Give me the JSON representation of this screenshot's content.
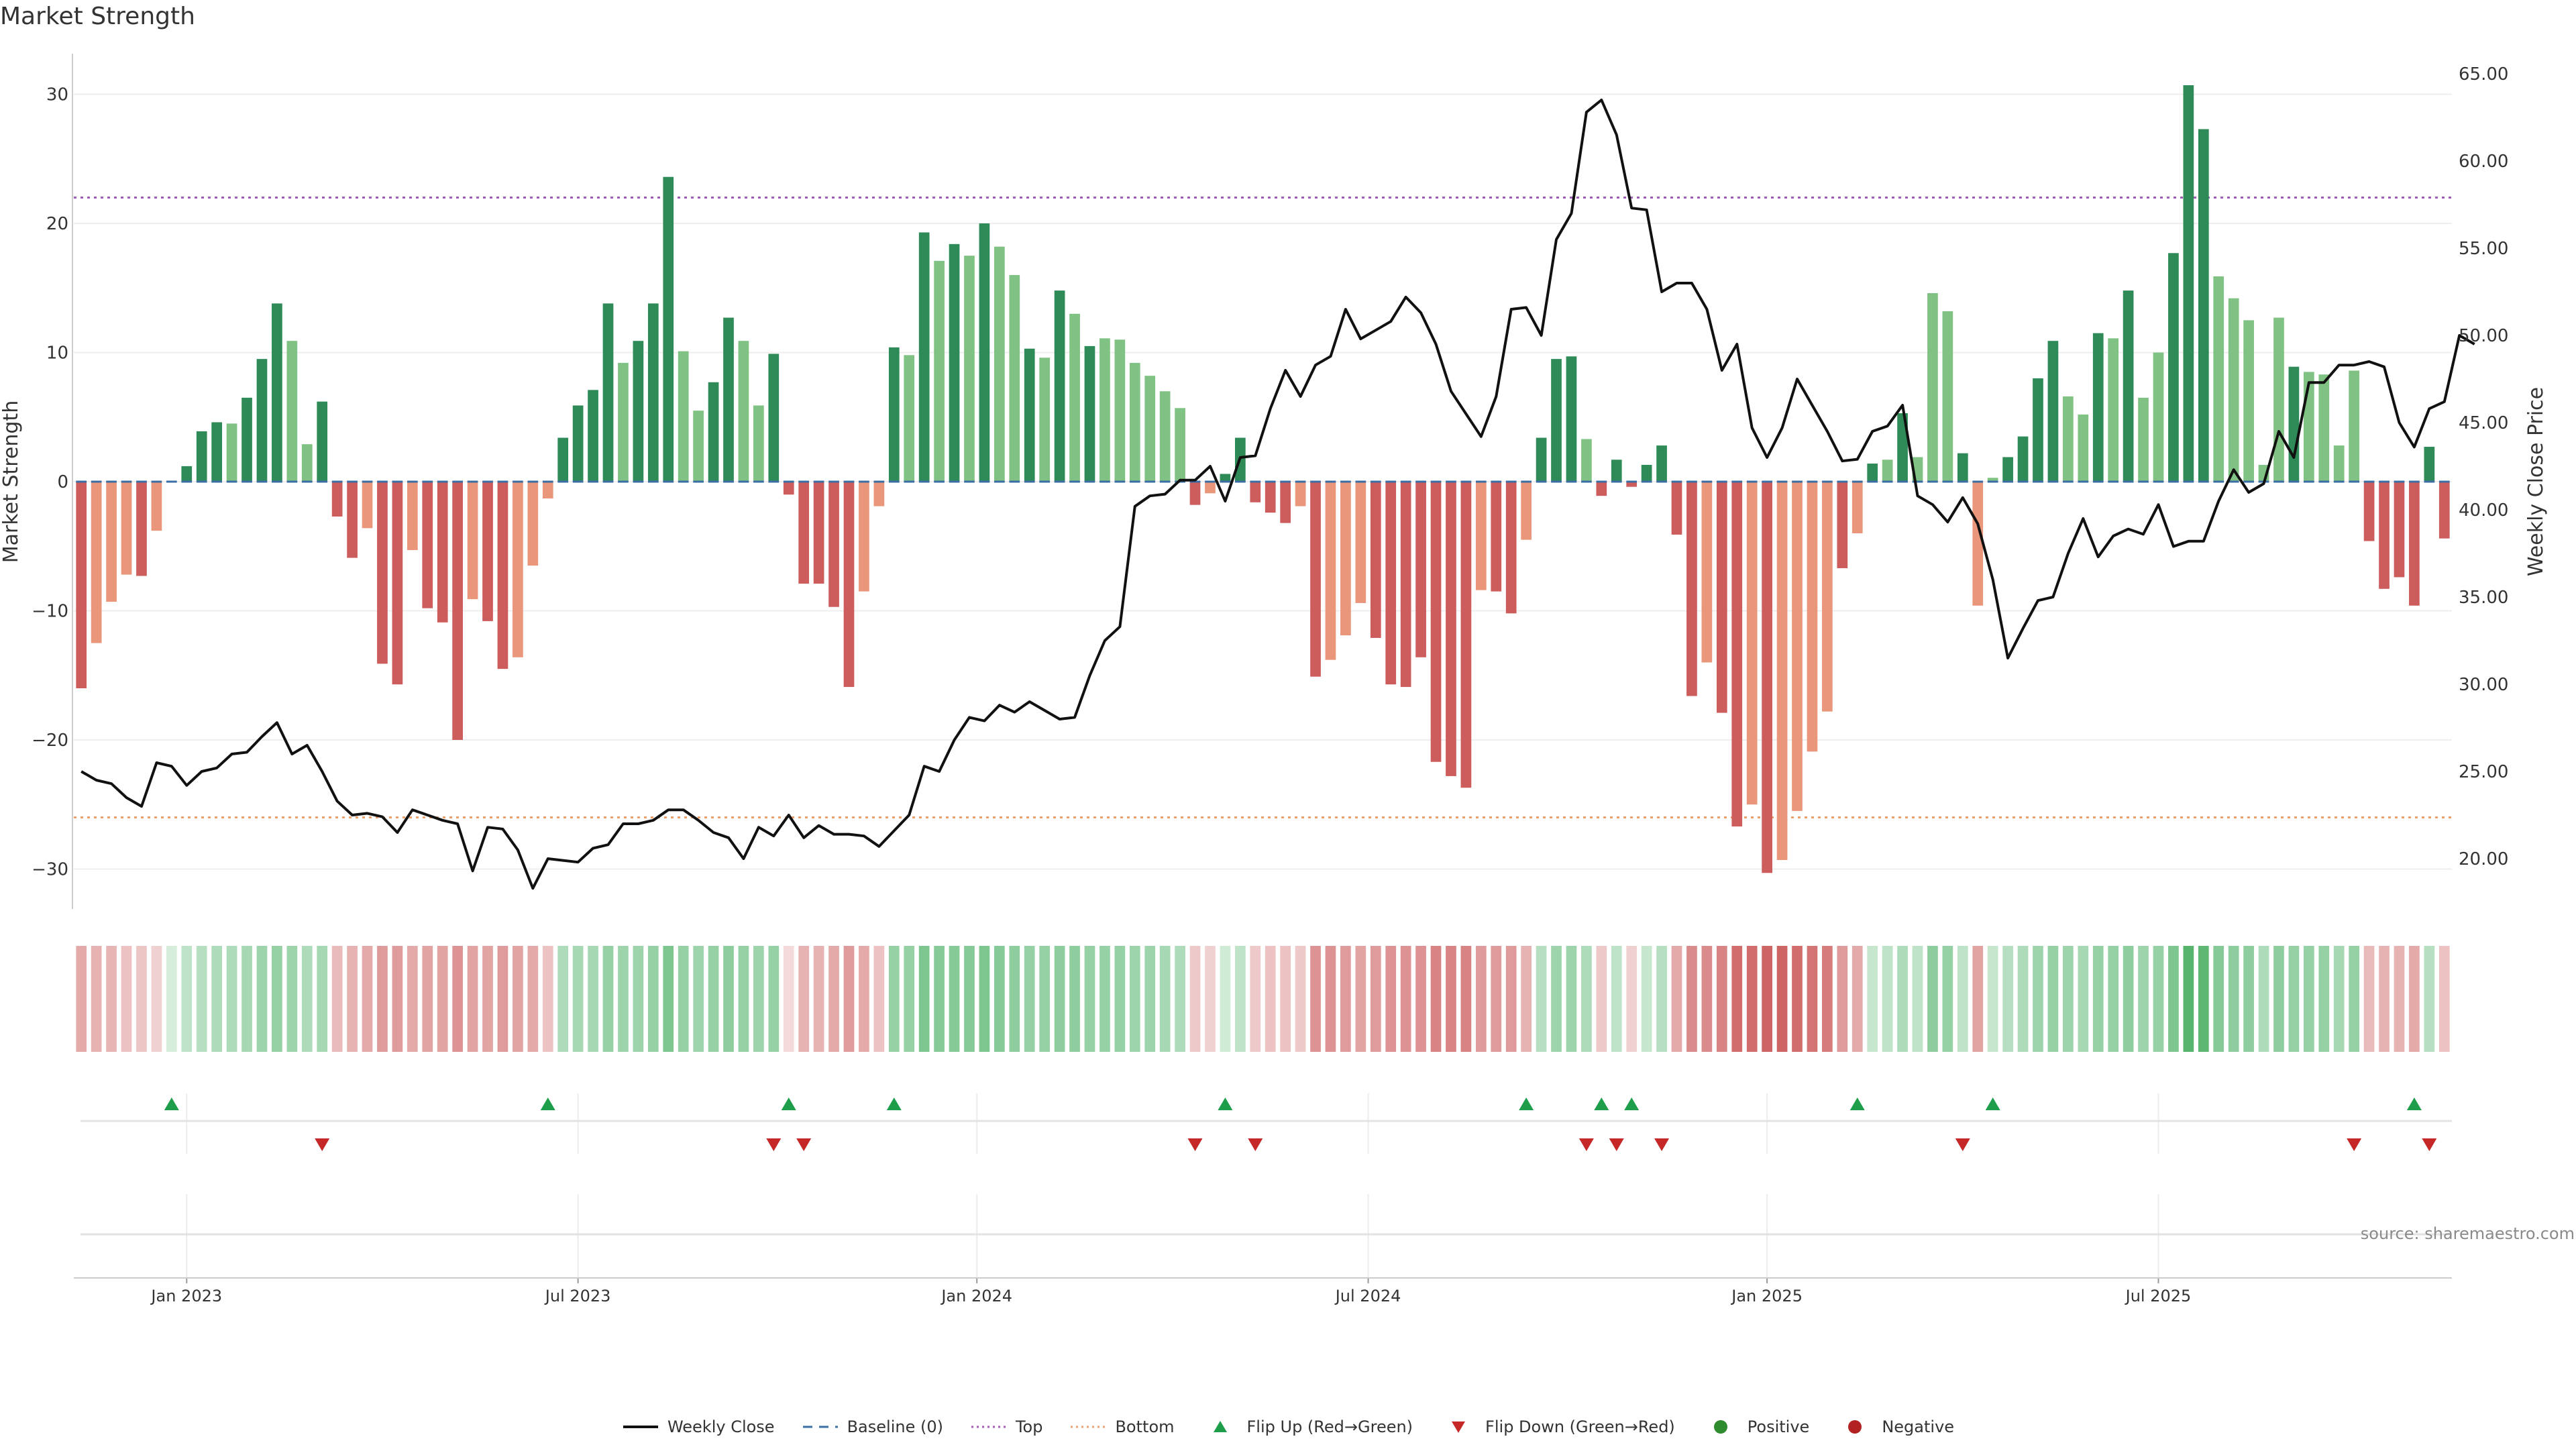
{
  "title": "Market Strength",
  "source": "source: sharemaestro.com",
  "legend": [
    {
      "name": "legend-weekly-close",
      "label": "Weekly Close",
      "symbol": "line",
      "color": "#111111"
    },
    {
      "name": "legend-baseline",
      "label": "Baseline (0)",
      "symbol": "dash",
      "color": "#3b6ea5"
    },
    {
      "name": "legend-top",
      "label": "Top",
      "symbol": "dot",
      "color": "#a05cb4"
    },
    {
      "name": "legend-bottom",
      "label": "Bottom",
      "symbol": "dot",
      "color": "#f0a070"
    },
    {
      "name": "legend-flip-up",
      "label": "Flip Up (Red→Green)",
      "symbol": "tri-up",
      "color": "#1e9e4a"
    },
    {
      "name": "legend-flip-down",
      "label": "Flip Down (Green→Red)",
      "symbol": "tri-down",
      "color": "#c62828"
    },
    {
      "name": "legend-positive",
      "label": "Positive",
      "symbol": "circle",
      "color": "#2e8b2e"
    },
    {
      "name": "legend-negative",
      "label": "Negative",
      "symbol": "circle",
      "color": "#b22222"
    }
  ],
  "chart_data": {
    "type": "bar",
    "title": "Market Strength",
    "ylabel": "Market Strength",
    "y2label": "Weekly Close Price",
    "ylim": [
      -33,
      30
    ],
    "y2lim": [
      17.5,
      66
    ],
    "yticks": [
      {
        "value": 30,
        "label": "30"
      },
      {
        "value": 20,
        "label": "20"
      },
      {
        "value": 10,
        "label": "10"
      },
      {
        "value": 0,
        "label": "0"
      },
      {
        "value": -10,
        "label": "−10"
      },
      {
        "value": -20,
        "label": "−20"
      },
      {
        "value": -30,
        "label": "−30"
      }
    ],
    "y2ticks": [
      {
        "value": 65,
        "label": "65.00"
      },
      {
        "value": 60,
        "label": "60.00"
      },
      {
        "value": 55,
        "label": "55.00"
      },
      {
        "value": 50,
        "label": "50.00"
      },
      {
        "value": 45,
        "label": "45.00"
      },
      {
        "value": 40,
        "label": "40.00"
      },
      {
        "value": 35,
        "label": "35.00"
      },
      {
        "value": 30,
        "label": "30.00"
      },
      {
        "value": 25,
        "label": "25.00"
      },
      {
        "value": 20,
        "label": "20.00"
      }
    ],
    "xticks": [
      {
        "index": 7.5,
        "label": "Jan 2023"
      },
      {
        "index": 33.5,
        "label": "Jul 2023"
      },
      {
        "index": 60,
        "label": "Jan 2024"
      },
      {
        "index": 86,
        "label": "Jul 2024"
      },
      {
        "index": 112.5,
        "label": "Jan 2025"
      },
      {
        "index": 138.5,
        "label": "Jul 2025"
      }
    ],
    "top_threshold": 22,
    "bottom_threshold": -26,
    "strength": [
      -16,
      -12.5,
      -9.3,
      -7.2,
      -7.3,
      -3.8,
      0,
      1.2,
      3.9,
      4.6,
      4.5,
      6.5,
      9.5,
      13.8,
      10.9,
      2.9,
      6.2,
      -2.7,
      -5.9,
      -3.6,
      -14.1,
      -15.7,
      -5.3,
      -9.8,
      -10.9,
      -20,
      -9.1,
      -10.8,
      -14.5,
      -13.6,
      -6.5,
      -1.3,
      3.4,
      5.9,
      7.1,
      13.8,
      9.2,
      10.9,
      13.8,
      23.6,
      10.1,
      5.5,
      7.7,
      12.7,
      10.9,
      5.9,
      9.9,
      -1,
      -7.9,
      -7.9,
      -9.7,
      -15.9,
      -8.5,
      -1.9,
      10.4,
      9.8,
      19.3,
      17.1,
      18.4,
      17.5,
      20,
      18.2,
      16,
      10.3,
      9.6,
      14.8,
      13,
      10.5,
      11.1,
      11,
      9.2,
      8.2,
      7,
      5.7,
      -1.8,
      -0.9,
      0.6,
      3.4,
      -1.6,
      -2.4,
      -3.2,
      -1.9,
      -15.1,
      -13.8,
      -11.9,
      -9.4,
      -12.1,
      -15.7,
      -15.9,
      -13.6,
      -21.7,
      -22.8,
      -23.7,
      -8.4,
      -8.5,
      -10.2,
      -4.5,
      3.4,
      9.5,
      9.7,
      3.3,
      -1.1,
      1.7,
      -0.4,
      1.3,
      2.8,
      -4.1,
      -16.6,
      -14,
      -17.9,
      -26.7,
      -25,
      -30.3,
      -29.3,
      -25.5,
      -20.9,
      -17.8,
      -6.7,
      -4,
      1.4,
      1.7,
      5.3,
      1.9,
      14.6,
      13.2,
      2.2,
      -9.6,
      0.3,
      1.9,
      3.5,
      8,
      10.9,
      6.6,
      5.2,
      11.5,
      11.1,
      14.8,
      6.5,
      10,
      17.7,
      30.7,
      27.3,
      15.9,
      14.2,
      12.5,
      1.3,
      12.7,
      8.9,
      8.5,
      8.3,
      2.8,
      8.6,
      -4.6,
      -8.3,
      -7.4,
      -9.6,
      2.7,
      -4.4
    ],
    "bar_shade": [
      1,
      2,
      2,
      2,
      1,
      2,
      0,
      1,
      1,
      1,
      2,
      1,
      1,
      1,
      2,
      2,
      1,
      1,
      1,
      2,
      1,
      1,
      2,
      1,
      1,
      1,
      2,
      1,
      1,
      2,
      2,
      2,
      1,
      1,
      1,
      1,
      2,
      1,
      1,
      1,
      2,
      2,
      1,
      1,
      2,
      2,
      1,
      1,
      1,
      1,
      1,
      1,
      2,
      2,
      1,
      2,
      1,
      2,
      1,
      2,
      1,
      2,
      2,
      1,
      2,
      1,
      2,
      1,
      2,
      2,
      2,
      2,
      2,
      2,
      1,
      2,
      1,
      1,
      1,
      1,
      1,
      2,
      1,
      2,
      2,
      2,
      1,
      1,
      1,
      1,
      1,
      1,
      1,
      2,
      1,
      1,
      2,
      1,
      1,
      1,
      2,
      1,
      1,
      1,
      1,
      1,
      1,
      1,
      2,
      1,
      1,
      2,
      1,
      2,
      2,
      2,
      2,
      1,
      2,
      1,
      2,
      1,
      2,
      2,
      2,
      1,
      2,
      2,
      1,
      1,
      1,
      1,
      2,
      2,
      1,
      2,
      1,
      2,
      2,
      1,
      1,
      1,
      2,
      2,
      2,
      2,
      2,
      1,
      2,
      2,
      2,
      2,
      1,
      1,
      1,
      1,
      1,
      1,
      2,
      1
    ],
    "heat_strength": [
      -0.35,
      -0.3,
      -0.28,
      -0.2,
      -0.18,
      -0.1,
      0.05,
      0.2,
      0.25,
      0.3,
      0.3,
      0.35,
      0.4,
      0.45,
      0.4,
      0.3,
      0.35,
      -0.25,
      -0.3,
      -0.35,
      -0.45,
      -0.45,
      -0.35,
      -0.4,
      -0.4,
      -0.5,
      -0.4,
      -0.4,
      -0.45,
      -0.4,
      -0.35,
      -0.2,
      0.3,
      0.35,
      0.35,
      0.45,
      0.4,
      0.4,
      0.45,
      0.6,
      0.45,
      0.4,
      0.45,
      0.5,
      0.45,
      0.4,
      0.45,
      -0.05,
      -0.3,
      -0.3,
      -0.35,
      -0.45,
      -0.35,
      -0.2,
      0.45,
      0.45,
      0.6,
      0.55,
      0.55,
      0.55,
      0.6,
      0.55,
      0.5,
      0.45,
      0.45,
      0.5,
      0.5,
      0.45,
      0.45,
      0.45,
      0.4,
      0.4,
      0.35,
      0.3,
      -0.15,
      -0.1,
      0.1,
      0.2,
      -0.15,
      -0.2,
      -0.2,
      -0.15,
      -0.5,
      -0.5,
      -0.45,
      -0.4,
      -0.45,
      -0.5,
      -0.5,
      -0.5,
      -0.6,
      -0.6,
      -0.6,
      -0.45,
      -0.45,
      -0.45,
      -0.3,
      0.25,
      0.4,
      0.4,
      0.3,
      -0.15,
      0.2,
      -0.1,
      0.15,
      0.25,
      -0.35,
      -0.55,
      -0.55,
      -0.6,
      -0.75,
      -0.75,
      -0.8,
      -0.8,
      -0.75,
      -0.7,
      -0.65,
      -0.45,
      -0.35,
      0.15,
      0.2,
      0.3,
      0.2,
      0.5,
      0.45,
      0.2,
      -0.4,
      0.15,
      0.25,
      0.3,
      0.4,
      0.45,
      0.4,
      0.35,
      0.45,
      0.45,
      0.5,
      0.4,
      0.45,
      0.6,
      0.85,
      0.8,
      0.55,
      0.5,
      0.5,
      0.3,
      0.5,
      0.45,
      0.45,
      0.45,
      0.35,
      0.45,
      -0.25,
      -0.3,
      -0.3,
      -0.35,
      0.25,
      -0.2
    ],
    "weekly_close": [
      25,
      24.5,
      24.3,
      23.5,
      23,
      25.5,
      25.3,
      24.2,
      25,
      25.2,
      26,
      26.1,
      27,
      27.8,
      26,
      26.5,
      25,
      23.3,
      22.5,
      22.6,
      22.4,
      21.5,
      22.8,
      22.5,
      22.2,
      22,
      19.3,
      21.8,
      21.7,
      20.5,
      18.3,
      20,
      19.9,
      19.8,
      20.6,
      20.8,
      22,
      22,
      22.2,
      22.8,
      22.8,
      22.2,
      21.5,
      21.2,
      20,
      21.8,
      21.3,
      22.5,
      21.2,
      21.9,
      21.4,
      21.4,
      21.3,
      20.7,
      21.6,
      22.5,
      25.3,
      25,
      26.8,
      28.1,
      27.9,
      28.8,
      28.4,
      29,
      28.5,
      28,
      28.1,
      30.5,
      32.5,
      33.3,
      40.2,
      40.8,
      40.9,
      41.7,
      41.7,
      42.5,
      40.5,
      43,
      43.1,
      45.8,
      48,
      46.5,
      48.3,
      48.8,
      51.5,
      49.8,
      50.3,
      50.8,
      52.2,
      51.3,
      49.5,
      46.8,
      45.5,
      44.2,
      46.5,
      51.5,
      51.6,
      50,
      55.5,
      57,
      62.8,
      63.5,
      61.5,
      57.3,
      57.2,
      52.5,
      53,
      53,
      51.5,
      48,
      49.5,
      44.7,
      43,
      44.7,
      47.5,
      46,
      44.5,
      42.8,
      42.9,
      44.5,
      44.8,
      46,
      40.8,
      40.3,
      39.3,
      40.7,
      39.2,
      36,
      31.5,
      33.2,
      34.8,
      35,
      37.5,
      39.5,
      37.3,
      38.5,
      38.9,
      38.6,
      40.3,
      37.9,
      38.2,
      38.2,
      40.5,
      42.3,
      41,
      41.5,
      44.5,
      43,
      47.3,
      47.3,
      48.3,
      48.3,
      48.5,
      48.2,
      45,
      43.6,
      45.8,
      46.2,
      50,
      49.5
    ],
    "flip_up": [
      6,
      31,
      47,
      54,
      76,
      96,
      101,
      103,
      118,
      127,
      155
    ],
    "flip_down": [
      16,
      46,
      48,
      74,
      78,
      100,
      102,
      105,
      125,
      151,
      156
    ],
    "palette": {
      "pos_dark": "#2e8b57",
      "pos_light": "#80c283",
      "neg_dark": "#cd5c5c",
      "neg_light": "#e9967a",
      "price_line": "#111111",
      "baseline": "#3b6ea5",
      "top_line": "#a05cb4",
      "bottom_line": "#f0a070",
      "flip_up": "#1e9e4a",
      "flip_down": "#c62828"
    }
  }
}
